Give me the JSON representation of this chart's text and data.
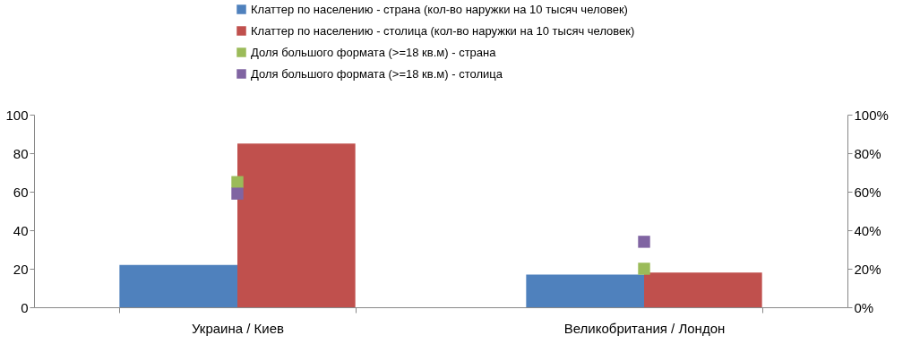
{
  "chart_data": {
    "type": "bar",
    "categories": [
      "Украина / Киев",
      "Великобритания / Лондон"
    ],
    "series": [
      {
        "name": "Клаттер по населению - страна (кол-во наружки на 10 тысяч человек)",
        "color": "#4f81bd",
        "values": [
          22,
          17
        ]
      },
      {
        "name": "Клаттер по населению - столица (кол-во наружки на 10 тысяч человек)",
        "color": "#c0504d",
        "values": [
          85,
          18
        ]
      },
      {
        "name": "Доля большого формата (>=18 кв.м) - страна",
        "color": "#9bbb59",
        "values": [
          65,
          20
        ],
        "type": "scatter",
        "axis": "y2",
        "x": [
          "Украина / Киев",
          "Великобритания / Лондон"
        ]
      },
      {
        "name": "Доля большого формата (>=18 кв.м) - столица",
        "color": "#8064a2",
        "values": [
          59,
          34
        ],
        "type": "scatter",
        "axis": "y2",
        "x": [
          "Украина / Киев",
          "Великобритания / Лондон"
        ]
      }
    ],
    "ylim": [
      0,
      100
    ],
    "yticks": [
      0,
      20,
      40,
      60,
      80,
      100
    ],
    "y2lim": [
      0,
      100
    ],
    "y2ticks": [
      {
        "value": 0,
        "label": "0%"
      },
      {
        "value": 20,
        "label": "20%"
      },
      {
        "value": 40,
        "label": "40%"
      },
      {
        "value": 60,
        "label": "60%"
      },
      {
        "value": 80,
        "label": "80%"
      },
      {
        "value": 100,
        "label": "100%"
      }
    ],
    "legend": "top",
    "marker": "square"
  }
}
